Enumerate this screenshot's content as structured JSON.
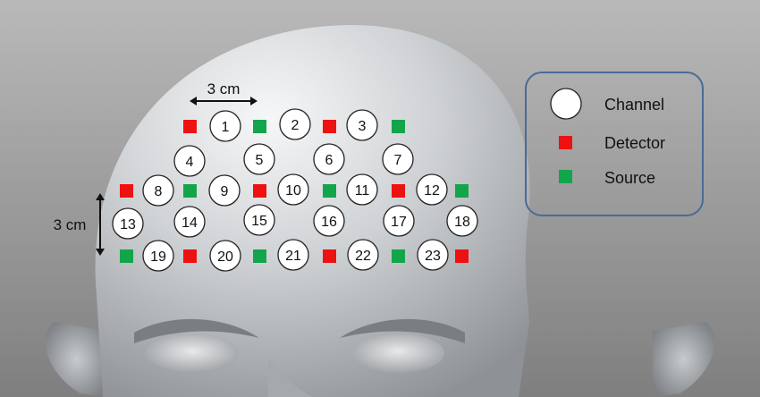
{
  "scale_labels": {
    "horizontal": "3 cm",
    "vertical": "3 cm"
  },
  "legend": {
    "channel": "Channel",
    "detector": "Detector",
    "source": "Source"
  },
  "colors": {
    "detector": "#ee1111",
    "source": "#13a54b",
    "channel_fill": "#ffffff",
    "legend_border": "#4a6b96"
  },
  "channels": [
    "1",
    "2",
    "3",
    "4",
    "5",
    "6",
    "7",
    "8",
    "9",
    "10",
    "11",
    "12",
    "13",
    "14",
    "15",
    "16",
    "17",
    "18",
    "19",
    "20",
    "21",
    "22",
    "23"
  ],
  "optodes": {
    "row1": [
      "detector",
      "source",
      "detector",
      "source"
    ],
    "row3": [
      "detector",
      "source",
      "detector",
      "source",
      "detector",
      "source"
    ],
    "row5": [
      "source",
      "detector",
      "source",
      "detector",
      "source",
      "detector"
    ]
  }
}
